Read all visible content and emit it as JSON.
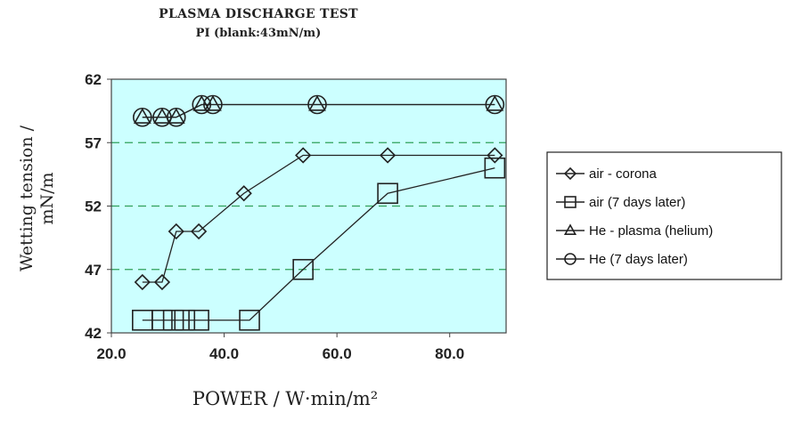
{
  "chart_data": {
    "type": "line",
    "title": "PLASMA DISCHARGE TEST",
    "subtitle": "PI  (blank:43mN/m)",
    "ylabel": "Wetting tension  /\nmN/m",
    "xlabel": "POWER / W·min/m²",
    "xlim": [
      20,
      90
    ],
    "ylim": [
      42,
      62
    ],
    "xticks": [
      "20.0",
      "40.0",
      "60.0",
      "80.0"
    ],
    "xtick_values": [
      20,
      40,
      60,
      80
    ],
    "yticks": [
      "42",
      "47",
      "52",
      "57",
      "62"
    ],
    "ytick_values": [
      42,
      47,
      52,
      57,
      62
    ],
    "grid": "horizontal dashed",
    "legend_position": "right",
    "plot_background": "#ccffff",
    "grid_color": "#2fa05a",
    "series": [
      {
        "name": "air - corona",
        "marker": "diamond",
        "x": [
          25.5,
          29,
          31.5,
          35.5,
          43.5,
          54,
          69,
          88
        ],
        "y": [
          46,
          46,
          50,
          50,
          53,
          56,
          56,
          56
        ]
      },
      {
        "name": "air (7 days later)",
        "marker": "square",
        "x": [
          25.5,
          29,
          31,
          33,
          35.5,
          44.5,
          54,
          69,
          88
        ],
        "y": [
          43,
          43,
          43,
          43,
          43,
          43,
          47,
          53,
          55
        ]
      },
      {
        "name": "He - plasma (helium)",
        "marker": "triangle",
        "x": [
          25.5,
          29,
          31.5,
          36,
          38,
          56.5,
          88
        ],
        "y": [
          59,
          59,
          59,
          60,
          60,
          60,
          60
        ]
      },
      {
        "name": "He (7 days later)",
        "marker": "circle",
        "x": [
          25.5,
          29,
          31.5,
          36,
          38,
          56.5,
          88
        ],
        "y": [
          59,
          59,
          59,
          60,
          60,
          60,
          60
        ]
      }
    ]
  }
}
